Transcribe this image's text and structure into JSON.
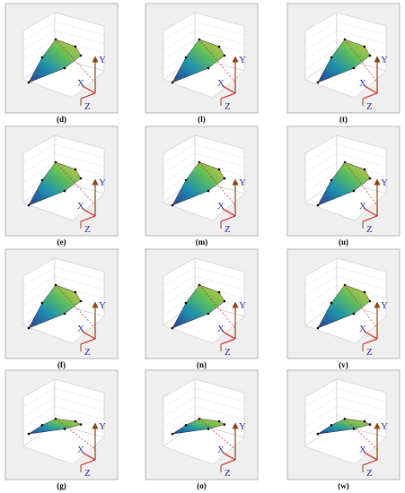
{
  "panels": [
    {
      "label": "(d)",
      "axes": [
        "X",
        "Y",
        "Z"
      ]
    },
    {
      "label": "(l)",
      "axes": [
        "X",
        "Y",
        "Z"
      ]
    },
    {
      "label": "(t)",
      "axes": [
        "X",
        "Y",
        "Z"
      ]
    },
    {
      "label": "(e)",
      "axes": [
        "X",
        "Y",
        "Z"
      ]
    },
    {
      "label": "(m)",
      "axes": [
        "X",
        "Y",
        "Z"
      ]
    },
    {
      "label": "(u)",
      "axes": [
        "X",
        "Y",
        "Z"
      ]
    },
    {
      "label": "(f)",
      "axes": [
        "X",
        "Y",
        "Z"
      ]
    },
    {
      "label": "(n)",
      "axes": [
        "X",
        "Y",
        "Z"
      ]
    },
    {
      "label": "(v)",
      "axes": [
        "X",
        "Y",
        "Z"
      ]
    },
    {
      "label": "(g)",
      "axes": [
        "X",
        "Y",
        "Z"
      ]
    },
    {
      "label": "(o)",
      "axes": [
        "X",
        "Y",
        "Z"
      ]
    },
    {
      "label": "(w)",
      "axes": [
        "X",
        "Y",
        "Z"
      ]
    }
  ]
}
